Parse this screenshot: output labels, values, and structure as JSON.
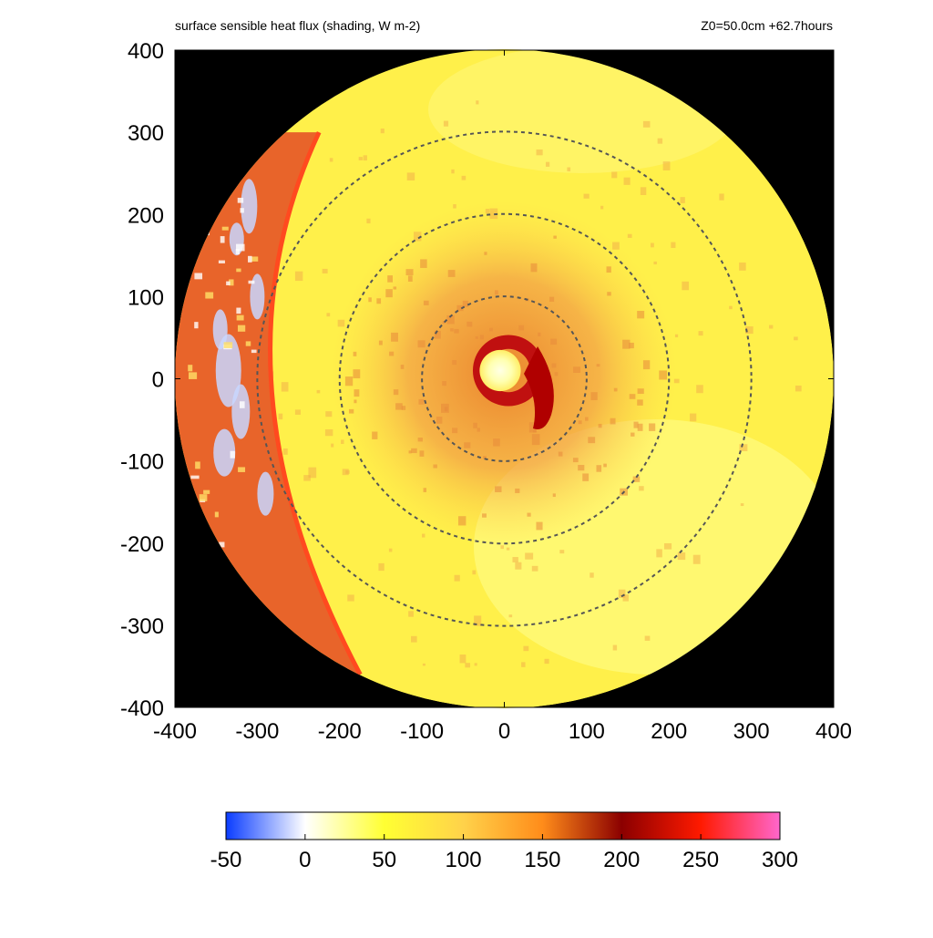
{
  "header": {
    "title": "surface sensible heat flux (shading, W m-2)",
    "info": "Z0=50.0cm  +62.7hours"
  },
  "colors": {
    "background_outside_domain": "#000000",
    "contour_line": "#555555",
    "front_line": "#ff4a1f",
    "colormap": [
      "#0a3cff",
      "#ffffff",
      "#ffff33",
      "#ffd24a",
      "#ff8c1a",
      "#8b0000",
      "#ff1a00",
      "#ff66cc"
    ]
  },
  "chart_data": {
    "type": "heatmap",
    "title": "surface sensible heat flux (shading, W m-2)",
    "annotation": "Z0=50.0cm  +62.7hours",
    "xlabel": "",
    "ylabel": "",
    "xlim": [
      -400,
      400
    ],
    "ylim": [
      -400,
      400
    ],
    "x_ticks": [
      "-400",
      "-300",
      "-200",
      "-100",
      "0",
      "100",
      "200",
      "300",
      "400"
    ],
    "y_ticks": [
      "400",
      "300",
      "200",
      "100",
      "0",
      "-100",
      "-200",
      "-300",
      "-400"
    ],
    "domain_radius": 400,
    "range_rings": [
      100,
      200,
      300
    ],
    "features": {
      "eye": {
        "x": -5,
        "y": 10,
        "radius": 25,
        "value": 20
      },
      "eyewall": {
        "x": 5,
        "y": 10,
        "radius": 60,
        "value": 210
      },
      "inner_band": {
        "radius": 110,
        "value": 130
      },
      "outer_region_value": 60,
      "western_front": {
        "x_at_top": -225,
        "x_at_mid": -315,
        "x_at_bottom": -175,
        "value": 120
      }
    },
    "colorbar": {
      "min": -50,
      "max": 300,
      "tick_values": [
        -50,
        0,
        50,
        100,
        150,
        200,
        250,
        300
      ],
      "tick_labels": [
        "-50",
        "0",
        "50",
        "100",
        "150",
        "200",
        "250",
        "300"
      ]
    }
  }
}
